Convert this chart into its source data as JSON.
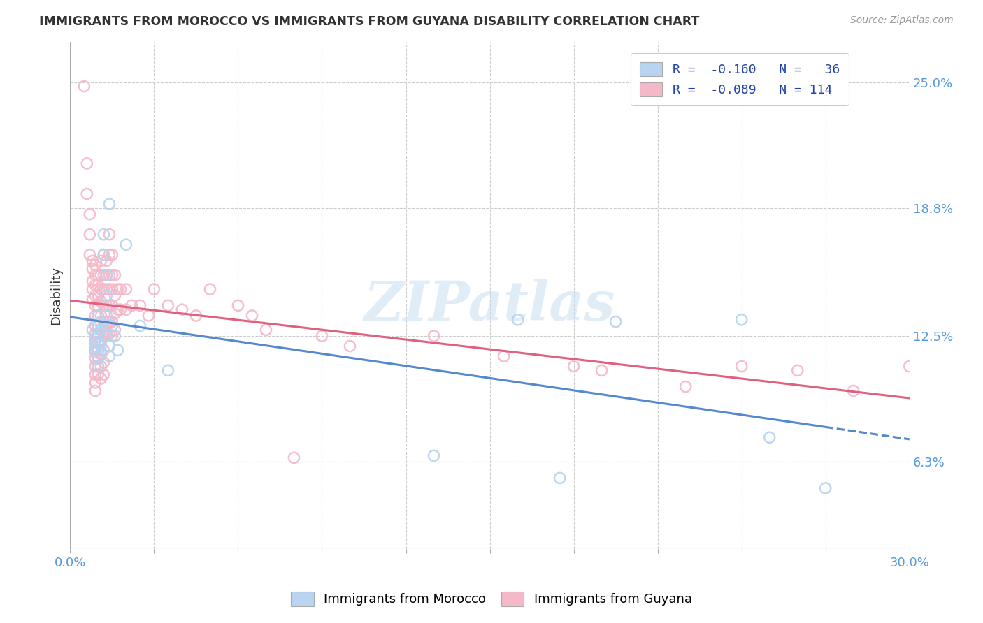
{
  "title": "IMMIGRANTS FROM MOROCCO VS IMMIGRANTS FROM GUYANA DISABILITY CORRELATION CHART",
  "source": "Source: ZipAtlas.com",
  "ylabel": "Disability",
  "ytick_values": [
    0.063,
    0.125,
    0.188,
    0.25
  ],
  "ytick_labels": [
    "6.3%",
    "12.5%",
    "18.8%",
    "25.0%"
  ],
  "xlim": [
    0.0,
    0.3
  ],
  "ylim": [
    0.02,
    0.27
  ],
  "legend_bottom": [
    {
      "label": "Immigrants from Morocco",
      "color": "#b8d4f0"
    },
    {
      "label": "Immigrants from Guyana",
      "color": "#f5b8c8"
    }
  ],
  "morocco_color": "#b8d4f0",
  "guyana_color": "#f5b8c8",
  "morocco_line_color": "#5588cc",
  "guyana_line_color": "#e06080",
  "watermark": "ZIPatlas",
  "morocco_line_start_y": 0.133,
  "morocco_line_end_y": 0.099,
  "morocco_line_solid_end_x": 0.195,
  "guyana_line_start_y": 0.137,
  "guyana_line_end_y": 0.113,
  "morocco_points": [
    [
      0.008,
      0.128
    ],
    [
      0.009,
      0.124
    ],
    [
      0.009,
      0.12
    ],
    [
      0.009,
      0.117
    ],
    [
      0.01,
      0.135
    ],
    [
      0.01,
      0.13
    ],
    [
      0.01,
      0.126
    ],
    [
      0.01,
      0.122
    ],
    [
      0.01,
      0.118
    ],
    [
      0.01,
      0.114
    ],
    [
      0.01,
      0.11
    ],
    [
      0.011,
      0.132
    ],
    [
      0.011,
      0.128
    ],
    [
      0.011,
      0.12
    ],
    [
      0.012,
      0.175
    ],
    [
      0.012,
      0.165
    ],
    [
      0.013,
      0.155
    ],
    [
      0.013,
      0.145
    ],
    [
      0.013,
      0.135
    ],
    [
      0.013,
      0.125
    ],
    [
      0.014,
      0.12
    ],
    [
      0.014,
      0.115
    ],
    [
      0.014,
      0.19
    ],
    [
      0.015,
      0.13
    ],
    [
      0.016,
      0.125
    ],
    [
      0.017,
      0.118
    ],
    [
      0.02,
      0.17
    ],
    [
      0.025,
      0.13
    ],
    [
      0.035,
      0.108
    ],
    [
      0.13,
      0.066
    ],
    [
      0.16,
      0.133
    ],
    [
      0.175,
      0.055
    ],
    [
      0.195,
      0.132
    ],
    [
      0.24,
      0.133
    ],
    [
      0.25,
      0.075
    ],
    [
      0.27,
      0.05
    ]
  ],
  "guyana_points": [
    [
      0.005,
      0.248
    ],
    [
      0.006,
      0.21
    ],
    [
      0.006,
      0.195
    ],
    [
      0.007,
      0.185
    ],
    [
      0.007,
      0.175
    ],
    [
      0.007,
      0.165
    ],
    [
      0.008,
      0.162
    ],
    [
      0.008,
      0.158
    ],
    [
      0.008,
      0.152
    ],
    [
      0.008,
      0.148
    ],
    [
      0.008,
      0.143
    ],
    [
      0.009,
      0.16
    ],
    [
      0.009,
      0.155
    ],
    [
      0.009,
      0.15
    ],
    [
      0.009,
      0.145
    ],
    [
      0.009,
      0.14
    ],
    [
      0.009,
      0.135
    ],
    [
      0.009,
      0.13
    ],
    [
      0.009,
      0.126
    ],
    [
      0.009,
      0.122
    ],
    [
      0.009,
      0.118
    ],
    [
      0.009,
      0.114
    ],
    [
      0.009,
      0.11
    ],
    [
      0.009,
      0.106
    ],
    [
      0.009,
      0.102
    ],
    [
      0.009,
      0.098
    ],
    [
      0.01,
      0.155
    ],
    [
      0.01,
      0.15
    ],
    [
      0.01,
      0.145
    ],
    [
      0.01,
      0.14
    ],
    [
      0.01,
      0.135
    ],
    [
      0.01,
      0.13
    ],
    [
      0.01,
      0.126
    ],
    [
      0.01,
      0.122
    ],
    [
      0.01,
      0.118
    ],
    [
      0.01,
      0.114
    ],
    [
      0.01,
      0.11
    ],
    [
      0.01,
      0.106
    ],
    [
      0.011,
      0.162
    ],
    [
      0.011,
      0.155
    ],
    [
      0.011,
      0.148
    ],
    [
      0.011,
      0.142
    ],
    [
      0.011,
      0.135
    ],
    [
      0.011,
      0.128
    ],
    [
      0.011,
      0.122
    ],
    [
      0.011,
      0.116
    ],
    [
      0.011,
      0.11
    ],
    [
      0.011,
      0.104
    ],
    [
      0.012,
      0.165
    ],
    [
      0.012,
      0.155
    ],
    [
      0.012,
      0.148
    ],
    [
      0.012,
      0.14
    ],
    [
      0.012,
      0.132
    ],
    [
      0.012,
      0.125
    ],
    [
      0.012,
      0.118
    ],
    [
      0.012,
      0.112
    ],
    [
      0.012,
      0.106
    ],
    [
      0.013,
      0.162
    ],
    [
      0.013,
      0.155
    ],
    [
      0.013,
      0.148
    ],
    [
      0.013,
      0.14
    ],
    [
      0.013,
      0.132
    ],
    [
      0.013,
      0.126
    ],
    [
      0.014,
      0.175
    ],
    [
      0.014,
      0.165
    ],
    [
      0.014,
      0.155
    ],
    [
      0.014,
      0.148
    ],
    [
      0.014,
      0.14
    ],
    [
      0.014,
      0.132
    ],
    [
      0.014,
      0.126
    ],
    [
      0.015,
      0.165
    ],
    [
      0.015,
      0.155
    ],
    [
      0.015,
      0.148
    ],
    [
      0.015,
      0.14
    ],
    [
      0.015,
      0.132
    ],
    [
      0.015,
      0.125
    ],
    [
      0.016,
      0.155
    ],
    [
      0.016,
      0.145
    ],
    [
      0.016,
      0.136
    ],
    [
      0.016,
      0.128
    ],
    [
      0.017,
      0.148
    ],
    [
      0.017,
      0.138
    ],
    [
      0.018,
      0.148
    ],
    [
      0.018,
      0.138
    ],
    [
      0.02,
      0.148
    ],
    [
      0.02,
      0.138
    ],
    [
      0.022,
      0.14
    ],
    [
      0.025,
      0.14
    ],
    [
      0.028,
      0.135
    ],
    [
      0.03,
      0.148
    ],
    [
      0.035,
      0.14
    ],
    [
      0.04,
      0.138
    ],
    [
      0.045,
      0.135
    ],
    [
      0.05,
      0.148
    ],
    [
      0.06,
      0.14
    ],
    [
      0.065,
      0.135
    ],
    [
      0.07,
      0.128
    ],
    [
      0.08,
      0.065
    ],
    [
      0.09,
      0.125
    ],
    [
      0.1,
      0.12
    ],
    [
      0.13,
      0.125
    ],
    [
      0.155,
      0.115
    ],
    [
      0.18,
      0.11
    ],
    [
      0.19,
      0.108
    ],
    [
      0.22,
      0.1
    ],
    [
      0.24,
      0.11
    ],
    [
      0.26,
      0.108
    ],
    [
      0.28,
      0.098
    ],
    [
      0.3,
      0.11
    ]
  ]
}
